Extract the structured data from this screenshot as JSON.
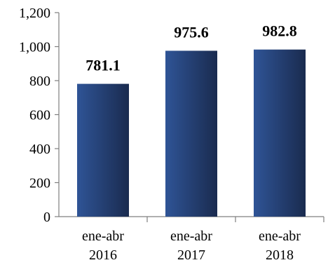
{
  "chart_data": {
    "type": "bar",
    "title": "",
    "xlabel": "",
    "ylabel": "",
    "ylim": [
      0,
      1200
    ],
    "yticks": [
      0,
      200,
      400,
      600,
      800,
      1000,
      1200
    ],
    "ytick_labels": [
      "0",
      "200",
      "400",
      "600",
      "800",
      "1,000",
      "1,200"
    ],
    "grid": false,
    "legend": "none",
    "categories": [
      [
        "ene-abr",
        "2016"
      ],
      [
        "ene-abr",
        "2017"
      ],
      [
        "ene-abr",
        "2018"
      ]
    ],
    "values": [
      781.1,
      975.6,
      982.8
    ],
    "data_labels": [
      "781.1",
      "975.6",
      "982.8"
    ],
    "bar_color": "#1f3864",
    "bar_color_light": "#2f5496"
  }
}
